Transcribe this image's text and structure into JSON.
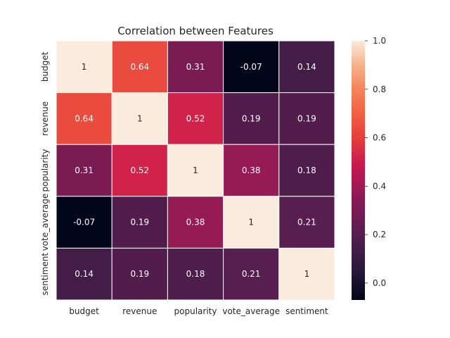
{
  "chart_data": {
    "type": "heatmap",
    "title": "Correlation between Features",
    "x_categories": [
      "budget",
      "revenue",
      "popularity",
      "vote_average",
      "sentiment"
    ],
    "y_categories": [
      "budget",
      "revenue",
      "popularity",
      "vote_average",
      "sentiment"
    ],
    "values": [
      [
        1,
        0.64,
        0.31,
        -0.07,
        0.14
      ],
      [
        0.64,
        1,
        0.52,
        0.19,
        0.19
      ],
      [
        0.31,
        0.52,
        1,
        0.38,
        0.18
      ],
      [
        -0.07,
        0.19,
        0.38,
        1,
        0.21
      ],
      [
        0.14,
        0.19,
        0.18,
        0.21,
        1
      ]
    ],
    "cell_labels": [
      [
        "1",
        "0.64",
        "0.31",
        "-0.07",
        "0.14"
      ],
      [
        "0.64",
        "1",
        "0.52",
        "0.19",
        "0.19"
      ],
      [
        "0.31",
        "0.52",
        "1",
        "0.38",
        "0.18"
      ],
      [
        "-0.07",
        "0.19",
        "0.38",
        "1",
        "0.21"
      ],
      [
        "0.14",
        "0.19",
        "0.18",
        "0.21",
        "1"
      ]
    ],
    "colorbar": {
      "range": [
        -0.07,
        1.0
      ],
      "ticks": [
        0.0,
        0.2,
        0.4,
        0.6,
        0.8,
        1.0
      ],
      "tick_labels": [
        "0.0",
        "0.2",
        "0.4",
        "0.6",
        "0.8",
        "1.0"
      ],
      "colormap": "rocket",
      "position": "right"
    },
    "grid": false
  }
}
